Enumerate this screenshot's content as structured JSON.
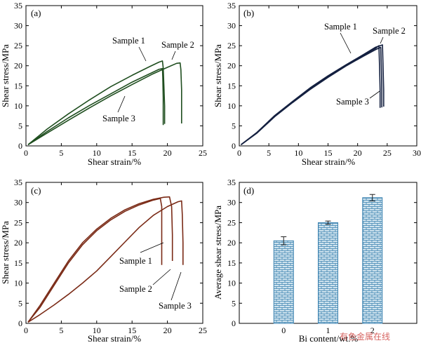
{
  "colors": {
    "panel_a": "#1f4e1f",
    "panel_b": "#142040",
    "panel_c": "#7a2a16",
    "bar_fill": "#cfe3ee",
    "bar_edge": "#3b82b0",
    "watermark": "#c9302c"
  },
  "watermark": "有色金属在线",
  "chart_data": [
    {
      "id": "a",
      "panel_label": "(a)",
      "type": "line",
      "xlabel": "Shear strain/%",
      "ylabel": "Shear stress/MPa",
      "xlim": [
        0,
        25
      ],
      "ylim": [
        0,
        35
      ],
      "xticks": [
        0,
        5,
        10,
        15,
        20,
        25
      ],
      "yticks": [
        0,
        5,
        10,
        15,
        20,
        25,
        30,
        35
      ],
      "series": [
        {
          "name": "Sample 1",
          "points": [
            [
              0.3,
              0.3
            ],
            [
              3,
              4.2
            ],
            [
              6,
              8.0
            ],
            [
              9,
              11.5
            ],
            [
              12,
              14.8
            ],
            [
              15,
              17.6
            ],
            [
              17.5,
              19.8
            ],
            [
              18.8,
              20.9
            ],
            [
              19.3,
              21.2
            ],
            [
              19.4,
              19.5
            ],
            [
              19.5,
              15
            ],
            [
              19.6,
              10
            ],
            [
              19.6,
              5.5
            ]
          ]
        },
        {
          "name": "Sample 2",
          "points": [
            [
              0.3,
              0.3
            ],
            [
              3,
              3.2
            ],
            [
              6,
              6.4
            ],
            [
              9,
              9.5
            ],
            [
              12,
              12.5
            ],
            [
              15,
              15.3
            ],
            [
              18,
              18.0
            ],
            [
              20,
              19.6
            ],
            [
              21.3,
              20.6
            ],
            [
              21.8,
              20.7
            ],
            [
              21.9,
              19
            ],
            [
              22.0,
              14
            ],
            [
              22.0,
              10
            ],
            [
              22.0,
              5.6
            ]
          ]
        },
        {
          "name": "Sample 3",
          "points": [
            [
              0.3,
              0.3
            ],
            [
              3,
              3.6
            ],
            [
              6,
              7.0
            ],
            [
              9,
              10.1
            ],
            [
              12,
              13.0
            ],
            [
              15,
              15.9
            ],
            [
              17.5,
              18.0
            ],
            [
              18.8,
              19.1
            ],
            [
              19.3,
              19.3
            ],
            [
              19.35,
              17
            ],
            [
              19.4,
              12
            ],
            [
              19.4,
              8
            ],
            [
              19.4,
              5.2
            ]
          ]
        }
      ],
      "annotations": [
        "Sample 1",
        "Sample 2",
        "Sample 3"
      ]
    },
    {
      "id": "b",
      "panel_label": "(b)",
      "type": "line",
      "xlabel": "Shear strain/%",
      "ylabel": "Shear stress/MPa",
      "xlim": [
        0,
        30
      ],
      "ylim": [
        0,
        35
      ],
      "xticks": [
        0,
        5,
        10,
        15,
        20,
        25,
        30
      ],
      "yticks": [
        0,
        5,
        10,
        15,
        20,
        25,
        30,
        35
      ],
      "series": [
        {
          "name": "Sample 1",
          "points": [
            [
              0.3,
              0.3
            ],
            [
              3,
              3.3
            ],
            [
              6,
              7.5
            ],
            [
              9,
              11.0
            ],
            [
              12,
              14.3
            ],
            [
              15,
              17.3
            ],
            [
              18,
              20.0
            ],
            [
              21,
              22.6
            ],
            [
              23,
              24.3
            ],
            [
              23.6,
              25.0
            ],
            [
              23.7,
              20
            ],
            [
              23.8,
              14
            ],
            [
              23.8,
              9.5
            ]
          ]
        },
        {
          "name": "Sample 2",
          "points": [
            [
              0.3,
              0.3
            ],
            [
              3,
              3.4
            ],
            [
              6,
              7.6
            ],
            [
              9,
              11.1
            ],
            [
              12,
              14.5
            ],
            [
              15,
              17.5
            ],
            [
              18,
              20.2
            ],
            [
              21,
              22.8
            ],
            [
              23,
              24.6
            ],
            [
              24.2,
              25.2
            ],
            [
              24.3,
              20
            ],
            [
              24.4,
              14
            ],
            [
              24.4,
              9.8
            ]
          ]
        },
        {
          "name": "Sample 3",
          "points": [
            [
              0.3,
              0.3
            ],
            [
              3,
              3.2
            ],
            [
              6,
              7.3
            ],
            [
              9,
              10.8
            ],
            [
              12,
              14.1
            ],
            [
              15,
              17.1
            ],
            [
              18,
              19.9
            ],
            [
              21,
              22.4
            ],
            [
              23,
              24.0
            ],
            [
              23.9,
              24.6
            ],
            [
              24.0,
              20
            ],
            [
              24.1,
              14
            ],
            [
              24.1,
              9.6
            ]
          ]
        }
      ],
      "annotations": [
        "Sample 1",
        "Sample 2",
        "Sample 3"
      ]
    },
    {
      "id": "c",
      "panel_label": "(c)",
      "type": "line",
      "xlabel": "Shear strain/%",
      "ylabel": "Shear stress/MPa",
      "xlim": [
        0,
        25
      ],
      "ylim": [
        0,
        35
      ],
      "xticks": [
        0,
        5,
        10,
        15,
        20,
        25
      ],
      "yticks": [
        0,
        5,
        10,
        15,
        20,
        25,
        30,
        35
      ],
      "series": [
        {
          "name": "Sample 1",
          "points": [
            [
              0.3,
              0.3
            ],
            [
              2,
              4
            ],
            [
              4,
              9.5
            ],
            [
              6,
              15
            ],
            [
              8,
              19.5
            ],
            [
              10,
              23
            ],
            [
              12,
              25.7
            ],
            [
              14,
              27.8
            ],
            [
              16,
              29.4
            ],
            [
              18,
              30.6
            ],
            [
              19,
              31.0
            ],
            [
              19.2,
              29
            ],
            [
              19.2,
              22
            ],
            [
              19.2,
              14.5
            ]
          ]
        },
        {
          "name": "Sample 2",
          "points": [
            [
              0.3,
              0.3
            ],
            [
              2,
              4.5
            ],
            [
              4,
              10
            ],
            [
              6,
              15.5
            ],
            [
              8,
              20
            ],
            [
              10,
              23.4
            ],
            [
              12,
              26.1
            ],
            [
              14,
              28.2
            ],
            [
              16,
              29.7
            ],
            [
              18,
              30.8
            ],
            [
              19.5,
              31.3
            ],
            [
              20.3,
              31.4
            ],
            [
              20.6,
              29
            ],
            [
              20.7,
              22
            ],
            [
              20.7,
              15.5
            ]
          ]
        },
        {
          "name": "Sample 3",
          "points": [
            [
              0.3,
              0.3
            ],
            [
              2,
              2.2
            ],
            [
              4,
              4.6
            ],
            [
              6,
              7.2
            ],
            [
              8,
              10
            ],
            [
              10,
              13
            ],
            [
              12,
              16.6
            ],
            [
              14,
              20.2
            ],
            [
              16,
              23.8
            ],
            [
              18,
              26.8
            ],
            [
              20,
              29.0
            ],
            [
              21.5,
              30.2
            ],
            [
              22.0,
              30.4
            ],
            [
              22.1,
              27
            ],
            [
              22.2,
              20
            ],
            [
              22.2,
              14.5
            ]
          ]
        }
      ],
      "annotations": [
        "Sample 1",
        "Sample 2",
        "Sample 3"
      ]
    },
    {
      "id": "d",
      "panel_label": "(d)",
      "type": "bar",
      "xlabel": "Bi content/wt.%",
      "ylabel": "Average shear stress/MPa",
      "categories": [
        "0",
        "1",
        "2"
      ],
      "values": [
        20.5,
        25.0,
        31.2
      ],
      "errors": [
        1.0,
        0.4,
        0.8
      ],
      "ylim": [
        0,
        35
      ],
      "yticks": [
        0,
        5,
        10,
        15,
        20,
        25,
        30,
        35
      ]
    }
  ]
}
